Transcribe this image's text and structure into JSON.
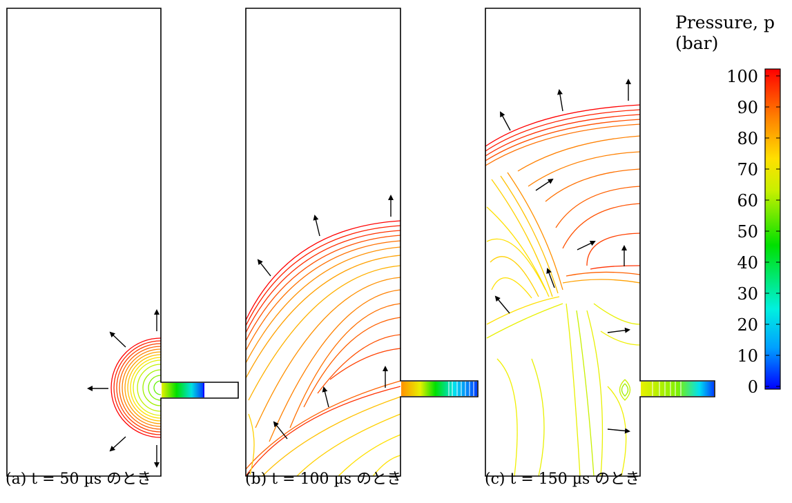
{
  "captions": {
    "a": "(a) t = 50 µs のとき",
    "b": "(b) t = 100 µs のとき",
    "c": "(c) t = 150 µs のとき"
  },
  "colorbar": {
    "title_line1": "Pressure, p",
    "title_line2": "(bar)",
    "ticks": [
      "100",
      "90",
      "80",
      "70",
      "60",
      "50",
      "40",
      "30",
      "20",
      "10",
      "0"
    ],
    "colors": [
      "#ff0000",
      "#ff8000",
      "#ffe000",
      "#c8f000",
      "#00e000",
      "#00f0e0",
      "#00a0ff",
      "#0000ff"
    ]
  }
}
